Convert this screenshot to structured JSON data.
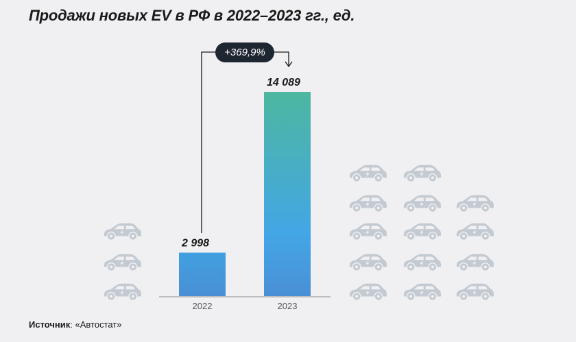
{
  "title": "Продажи новых EV в РФ в 2022–2023 гг., ед.",
  "source": {
    "label": "Источник",
    "value": ": «Автостат»"
  },
  "chart_data": {
    "type": "bar",
    "title": "Продажи новых EV в РФ в 2022–2023 гг., ед.",
    "categories": [
      "2022",
      "2023"
    ],
    "values": [
      2998,
      14089
    ],
    "data_labels": [
      "2 998",
      "14 089"
    ],
    "ylim": [
      0,
      14089
    ],
    "xlabel": "",
    "ylabel": "",
    "grid": false,
    "annotation": {
      "text": "+369,9%",
      "from": "2022",
      "to": "2023"
    }
  },
  "colors": {
    "bar_2022_top": "#40a0df",
    "bar_2022_bottom": "#4a8fd6",
    "bar_2023_top": "#4db7a0",
    "bar_2023_mid": "#43a6e6",
    "bar_2023_bottom": "#4a8fd6",
    "badge": "#1e2632",
    "car_icon": "#c4cad2",
    "axis": "#888888"
  },
  "decor": {
    "icon": "electric-car-icon"
  }
}
